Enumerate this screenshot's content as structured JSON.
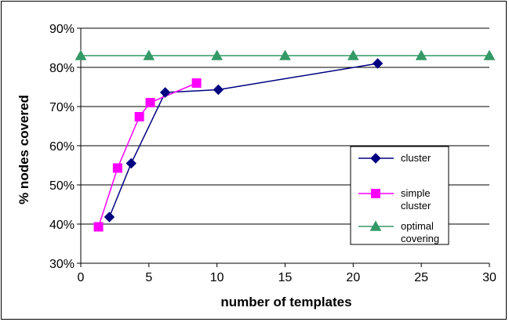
{
  "chart_data": {
    "type": "line",
    "title": "",
    "xlabel": "number of templates",
    "ylabel": "% nodes covered",
    "xlim": [
      0,
      30
    ],
    "ylim": [
      30,
      90
    ],
    "x_ticks": [
      0,
      5,
      10,
      15,
      20,
      25,
      30
    ],
    "y_ticks": [
      30,
      40,
      50,
      60,
      70,
      80,
      90
    ],
    "x_tick_labels": [
      "0",
      "5",
      "10",
      "15",
      "20",
      "25",
      "30"
    ],
    "y_tick_labels": [
      "30%",
      "40%",
      "50%",
      "60%",
      "70%",
      "80%",
      "90%"
    ],
    "grid": "horizontal",
    "legend_position": "right",
    "series": [
      {
        "name": "cluster",
        "color": "#000080",
        "marker": "diamond",
        "x": [
          2.1,
          3.7,
          6.2,
          10.1,
          21.8
        ],
        "y": [
          41.8,
          55.5,
          73.6,
          74.3,
          81.0
        ]
      },
      {
        "name": "simple cluster",
        "color": "#ff00ff",
        "marker": "square",
        "x": [
          1.3,
          2.7,
          4.3,
          5.1,
          8.5
        ],
        "y": [
          39.3,
          54.3,
          67.4,
          71.0,
          76.0
        ]
      },
      {
        "name": "optimal covering",
        "color": "#339966",
        "marker": "triangle",
        "x": [
          0,
          5,
          10,
          15,
          20,
          25,
          30
        ],
        "y": [
          83.0,
          83.0,
          83.0,
          83.0,
          83.0,
          83.0,
          83.0
        ]
      }
    ]
  },
  "legend": {
    "entries": [
      {
        "lines": [
          "cluster"
        ]
      },
      {
        "lines": [
          "simple",
          "cluster"
        ]
      },
      {
        "lines": [
          "optimal",
          "covering"
        ]
      }
    ]
  }
}
